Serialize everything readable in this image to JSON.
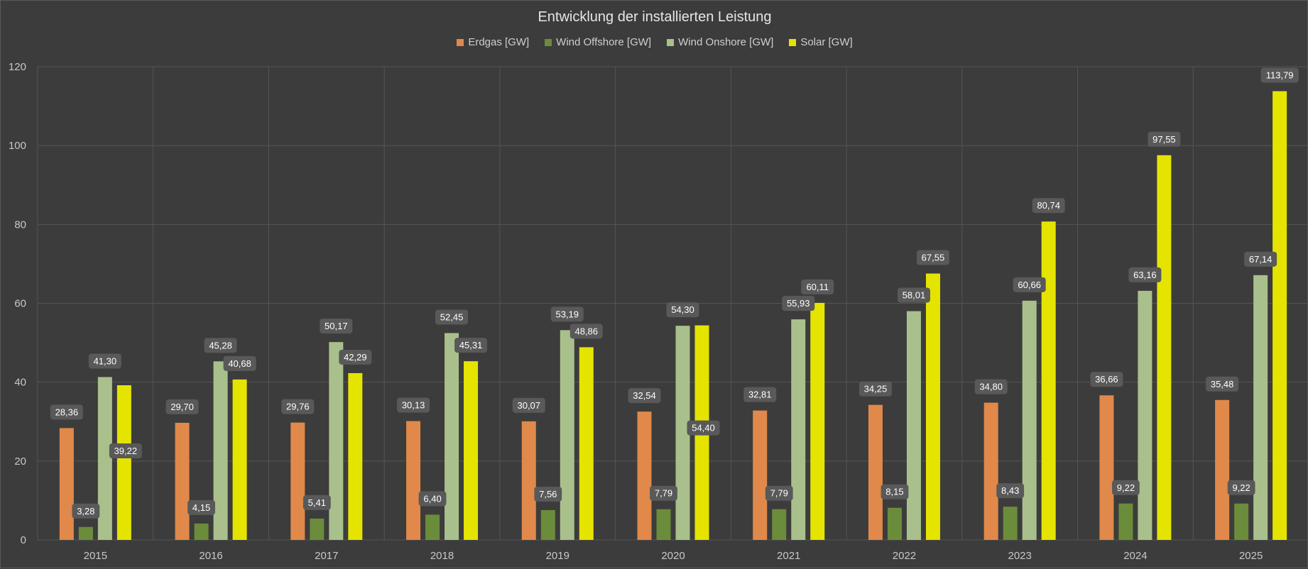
{
  "chart_data": {
    "type": "bar",
    "title": "Entwicklung der installierten Leistung",
    "xlabel": "",
    "ylabel": "",
    "ylim": [
      0,
      120
    ],
    "yticks": [
      0,
      20,
      40,
      60,
      80,
      100,
      120
    ],
    "grid": true,
    "legend_position": "top",
    "categories": [
      "2015",
      "2016",
      "2017",
      "2018",
      "2019",
      "2020",
      "2021",
      "2022",
      "2023",
      "2024",
      "2025"
    ],
    "series": [
      {
        "name": "Erdgas [GW]",
        "color": "#e0894a",
        "values": [
          28.36,
          29.7,
          29.76,
          30.13,
          30.07,
          32.54,
          32.81,
          34.25,
          34.8,
          36.66,
          35.48
        ],
        "labels": [
          "28,36",
          "29,70",
          "29,76",
          "30,13",
          "30,07",
          "32,54",
          "32,81",
          "34,25",
          "34,80",
          "36,66",
          "35,48"
        ]
      },
      {
        "name": "Wind Offshore [GW]",
        "color": "#6b8c3a",
        "values": [
          3.28,
          4.15,
          5.41,
          6.4,
          7.56,
          7.79,
          7.79,
          8.15,
          8.43,
          9.22,
          9.22
        ],
        "labels": [
          "3,28",
          "4,15",
          "5,41",
          "6,40",
          "7,56",
          "7,79",
          "7,79",
          "8,15",
          "8,43",
          "9,22",
          "9,22"
        ]
      },
      {
        "name": "Wind Onshore [GW]",
        "color": "#a9c08c",
        "values": [
          41.3,
          45.28,
          50.17,
          52.45,
          53.19,
          54.3,
          55.93,
          58.01,
          60.66,
          63.16,
          67.14
        ],
        "labels": [
          "41,30",
          "45,28",
          "50,17",
          "52,45",
          "53,19",
          "54,30",
          "55,93",
          "58,01",
          "60,66",
          "63,16",
          "67,14"
        ]
      },
      {
        "name": "Solar [GW]",
        "color": "#e5e400",
        "values": [
          39.22,
          40.68,
          42.29,
          45.31,
          48.86,
          54.4,
          60.11,
          67.55,
          80.74,
          97.55,
          113.79
        ],
        "labels": [
          "39,22",
          "40,68",
          "42,29",
          "45,31",
          "48,86",
          "54,40",
          "60,11",
          "67,55",
          "80,74",
          "97,55",
          "113,79"
        ]
      }
    ]
  }
}
